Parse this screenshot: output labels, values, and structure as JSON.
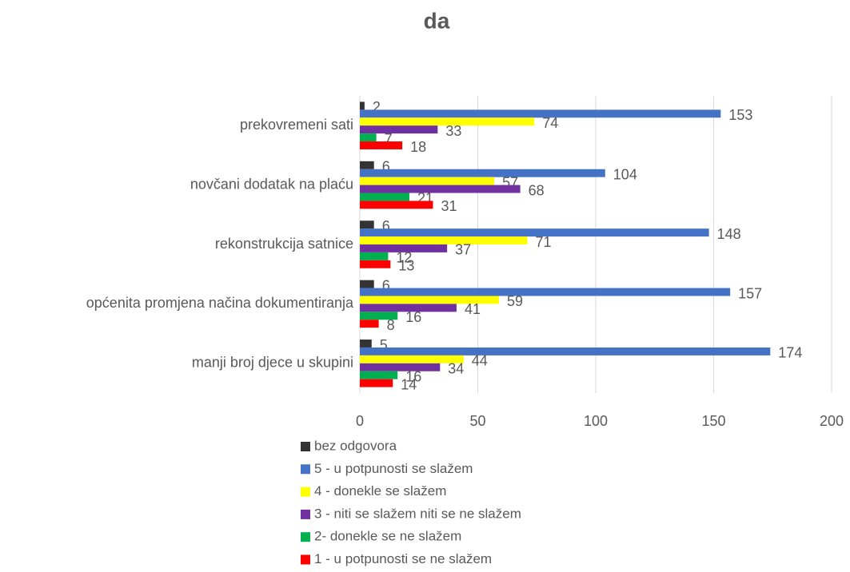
{
  "chart_data": {
    "type": "hbar",
    "title": "da",
    "categories": [
      "prekovremeni sati",
      "novčani dodatak na plaću",
      "rekonstrukcija satnice",
      "općenita promjena načina dokumentiranja",
      "manji broj djece u skupini"
    ],
    "series": [
      {
        "name": "bez odgovora",
        "color": "#333333",
        "values": [
          2,
          6,
          6,
          6,
          5
        ]
      },
      {
        "name": "5 - u potpunosti se slažem",
        "color": "#4472c4",
        "values": [
          153,
          104,
          148,
          157,
          174
        ]
      },
      {
        "name": "4 - donekle se slažem",
        "color": "#ffff00",
        "values": [
          74,
          57,
          71,
          59,
          44
        ]
      },
      {
        "name": "3 - niti se slažem niti se ne slažem",
        "color": "#7030a0",
        "values": [
          33,
          68,
          37,
          41,
          34
        ]
      },
      {
        "name": "2- donekle se ne slažem",
        "color": "#00b050",
        "values": [
          7,
          21,
          12,
          16,
          16
        ]
      },
      {
        "name": "1 - u potpunosti se ne slažem",
        "color": "#ff0000",
        "values": [
          18,
          31,
          13,
          8,
          14
        ]
      }
    ],
    "xlim": [
      0,
      200
    ],
    "xticks": [
      0,
      50,
      100,
      150,
      200
    ],
    "grid": true,
    "legend": "bottom"
  }
}
